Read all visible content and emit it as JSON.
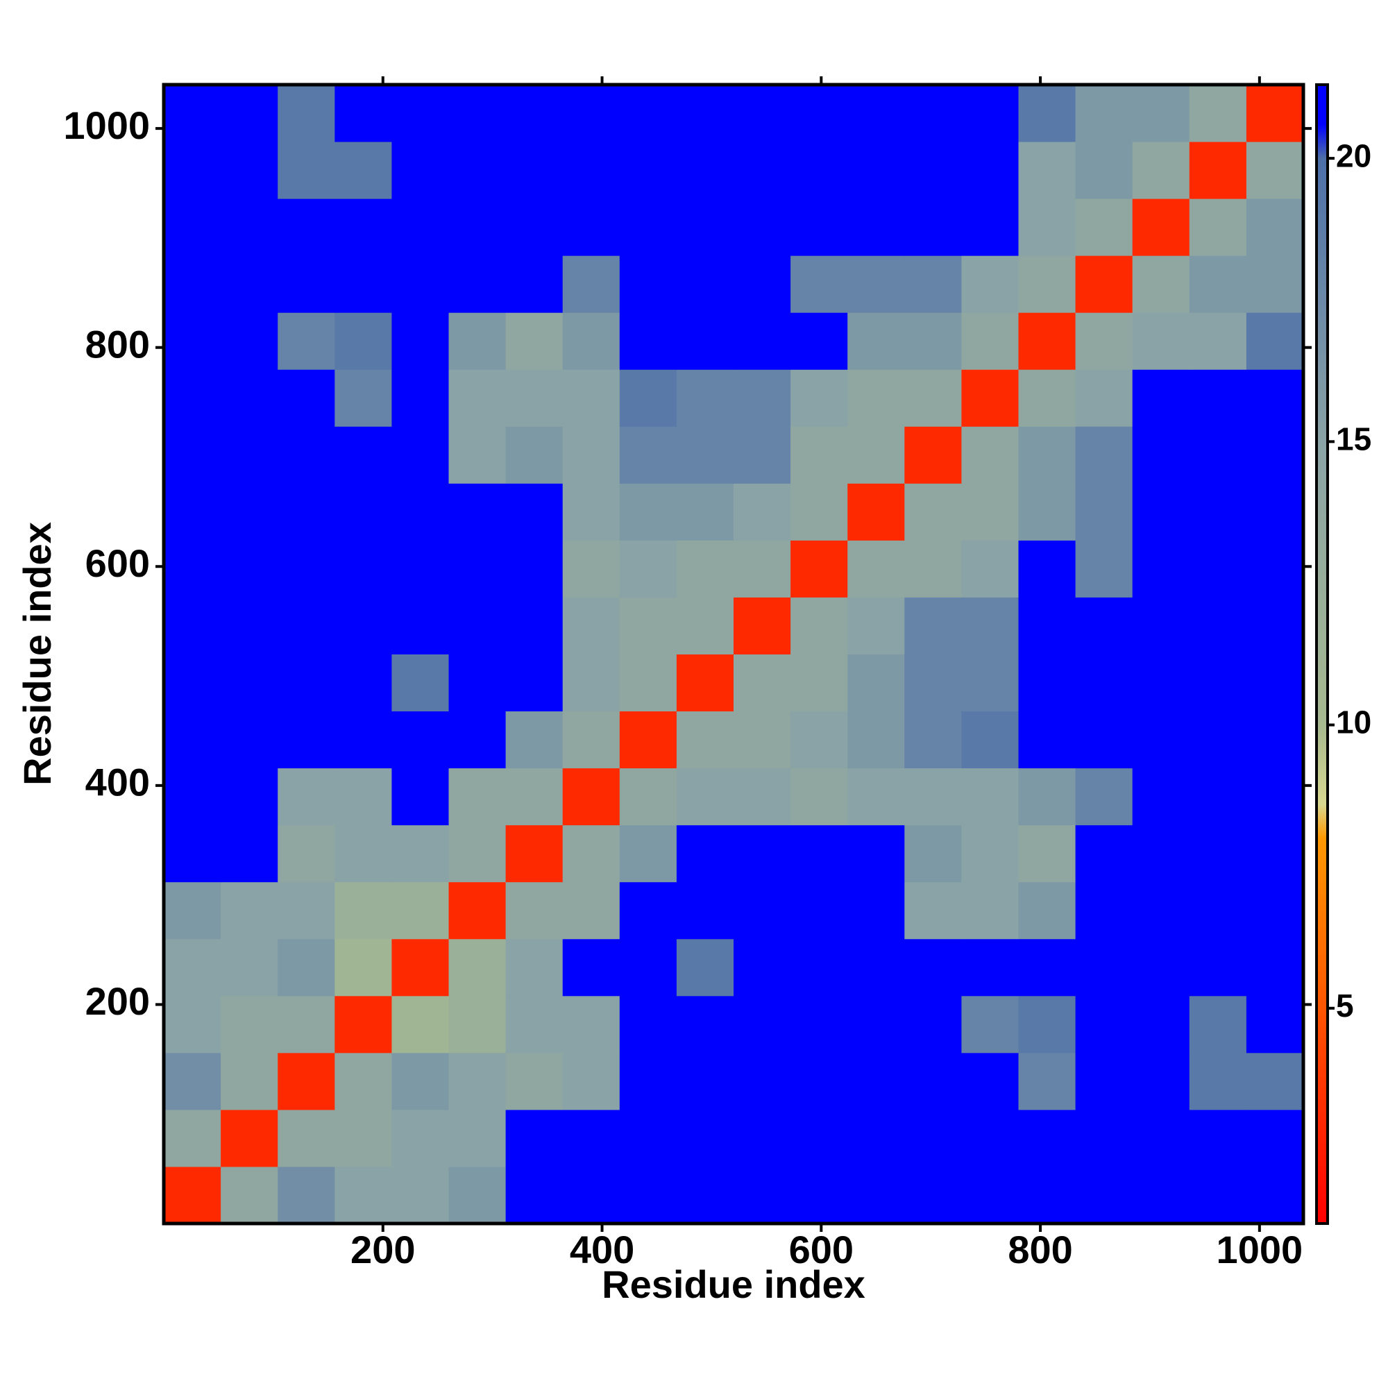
{
  "chart_data": {
    "type": "heatmap",
    "xlabel": "Residue index",
    "ylabel": "Residue index",
    "x": [
      26,
      78,
      130,
      182,
      234,
      286,
      338,
      390,
      442,
      494,
      546,
      598,
      650,
      702,
      754,
      806,
      858,
      910,
      962,
      1014
    ],
    "y": [
      26,
      78,
      130,
      182,
      234,
      286,
      338,
      390,
      442,
      494,
      546,
      598,
      650,
      702,
      754,
      806,
      858,
      910,
      962,
      1014
    ],
    "values": [
      [
        3,
        14,
        17,
        15,
        15,
        16,
        21,
        21,
        21,
        21,
        21,
        21,
        21,
        21,
        21,
        21,
        21,
        21,
        21,
        21
      ],
      [
        14,
        3,
        14,
        14,
        15,
        15,
        21,
        21,
        21,
        21,
        21,
        21,
        21,
        21,
        21,
        21,
        21,
        21,
        21,
        21
      ],
      [
        17,
        14,
        3,
        14,
        16,
        15,
        14,
        15,
        21,
        21,
        21,
        21,
        21,
        21,
        21,
        18,
        21,
        21,
        19,
        19
      ],
      [
        15,
        14,
        14,
        3,
        11,
        12,
        15,
        15,
        21,
        21,
        21,
        21,
        21,
        21,
        18,
        19,
        21,
        21,
        19,
        21
      ],
      [
        15,
        15,
        16,
        11,
        3,
        12,
        15,
        21,
        21,
        19,
        21,
        21,
        21,
        21,
        21,
        21,
        21,
        21,
        21,
        21
      ],
      [
        16,
        15,
        15,
        12,
        12,
        3,
        14,
        14,
        21,
        21,
        21,
        21,
        21,
        15,
        15,
        16,
        21,
        21,
        21,
        21
      ],
      [
        21,
        21,
        14,
        15,
        15,
        14,
        3,
        14,
        16,
        21,
        21,
        21,
        21,
        16,
        15,
        14,
        21,
        21,
        21,
        21
      ],
      [
        21,
        21,
        15,
        15,
        21,
        14,
        14,
        3,
        14,
        15,
        15,
        14,
        15,
        15,
        15,
        16,
        18,
        21,
        21,
        21
      ],
      [
        21,
        21,
        21,
        21,
        21,
        21,
        16,
        14,
        3,
        14,
        14,
        15,
        16,
        18,
        19,
        21,
        21,
        21,
        21,
        21
      ],
      [
        21,
        21,
        21,
        21,
        19,
        21,
        21,
        15,
        14,
        3,
        14,
        14,
        16,
        18,
        18,
        21,
        21,
        21,
        21,
        21
      ],
      [
        21,
        21,
        21,
        21,
        21,
        21,
        21,
        15,
        14,
        14,
        3,
        14,
        15,
        18,
        18,
        21,
        21,
        21,
        21,
        21
      ],
      [
        21,
        21,
        21,
        21,
        21,
        21,
        21,
        14,
        15,
        14,
        14,
        3,
        14,
        14,
        15,
        21,
        18,
        21,
        21,
        21
      ],
      [
        21,
        21,
        21,
        21,
        21,
        21,
        21,
        15,
        16,
        16,
        15,
        14,
        3,
        14,
        14,
        16,
        18,
        21,
        21,
        21
      ],
      [
        21,
        21,
        21,
        21,
        21,
        15,
        16,
        15,
        18,
        18,
        18,
        14,
        14,
        3,
        14,
        16,
        18,
        21,
        21,
        21
      ],
      [
        21,
        21,
        21,
        18,
        21,
        15,
        15,
        15,
        19,
        18,
        18,
        15,
        14,
        14,
        3,
        14,
        15,
        21,
        21,
        21
      ],
      [
        21,
        21,
        18,
        19,
        21,
        16,
        14,
        16,
        21,
        21,
        21,
        21,
        16,
        16,
        14,
        3,
        14,
        15,
        15,
        19
      ],
      [
        21,
        21,
        21,
        21,
        21,
        21,
        21,
        18,
        21,
        21,
        21,
        18,
        18,
        18,
        15,
        14,
        3,
        14,
        16,
        16
      ],
      [
        21,
        21,
        21,
        21,
        21,
        21,
        21,
        21,
        21,
        21,
        21,
        21,
        21,
        21,
        21,
        15,
        14,
        3,
        14,
        16
      ],
      [
        21,
        21,
        19,
        19,
        21,
        21,
        21,
        21,
        21,
        21,
        21,
        21,
        21,
        21,
        21,
        15,
        16,
        14,
        3,
        14
      ],
      [
        21,
        21,
        19,
        21,
        21,
        21,
        21,
        21,
        21,
        21,
        21,
        21,
        21,
        21,
        21,
        19,
        16,
        16,
        14,
        3
      ]
    ],
    "xlim": [
      0,
      1040
    ],
    "ylim": [
      0,
      1040
    ],
    "xticks": [
      200,
      400,
      600,
      800,
      1000
    ],
    "yticks": [
      200,
      400,
      600,
      800,
      1000
    ],
    "colorbar": {
      "zlim": [
        1.2,
        21.3
      ],
      "ticks": [
        5,
        10,
        15,
        20
      ],
      "colorscale": [
        [
          1.2,
          "#ff0000"
        ],
        [
          8,
          "#ff9900"
        ],
        [
          8.6,
          "#d8d890"
        ],
        [
          10,
          "#a6b98f"
        ],
        [
          15,
          "#8aa3a6"
        ],
        [
          20,
          "#4d6fa8"
        ],
        [
          20.6,
          "#0000ff"
        ],
        [
          21.3,
          "#0000ff"
        ]
      ]
    }
  }
}
